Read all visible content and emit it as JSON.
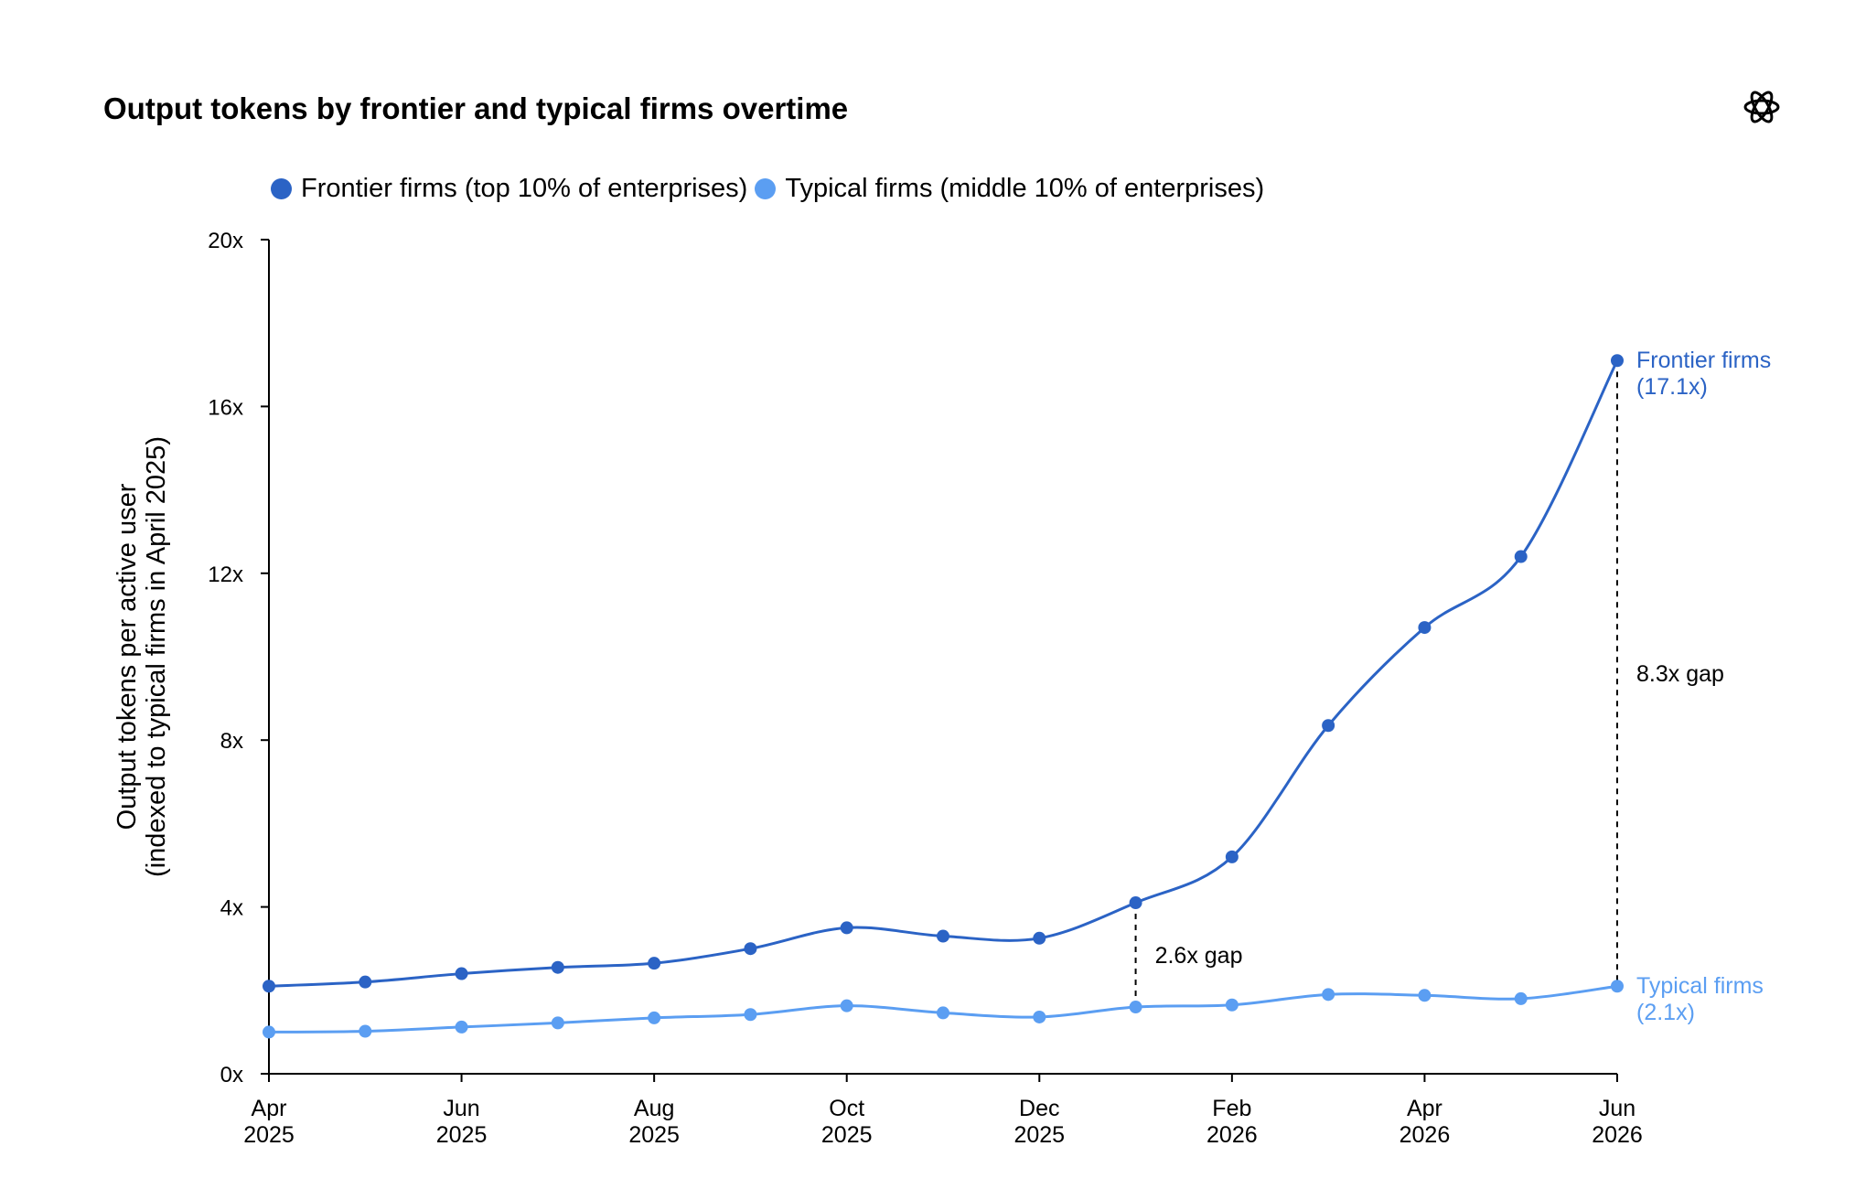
{
  "chart_data": {
    "type": "line",
    "title": "Output tokens by frontier and typical firms overtime",
    "ylabel": [
      "Output tokens per active user",
      "(indexed to typical firms in April 2025)"
    ],
    "xlabel": "",
    "ylim": [
      0,
      20
    ],
    "yticks": [
      {
        "value": 0,
        "label": "0x"
      },
      {
        "value": 4,
        "label": "4x"
      },
      {
        "value": 8,
        "label": "8x"
      },
      {
        "value": 12,
        "label": "12x"
      },
      {
        "value": 16,
        "label": "16x"
      },
      {
        "value": 20,
        "label": "20x"
      }
    ],
    "x": [
      "2025-04",
      "2025-05",
      "2025-06",
      "2025-07",
      "2025-08",
      "2025-09",
      "2025-10",
      "2025-11",
      "2025-12",
      "2026-01",
      "2026-02",
      "2026-03",
      "2026-04",
      "2026-05",
      "2026-06"
    ],
    "xticks": [
      {
        "month": "Apr",
        "year": "2025",
        "index": 0
      },
      {
        "month": "Jun",
        "year": "2025",
        "index": 2
      },
      {
        "month": "Aug",
        "year": "2025",
        "index": 4
      },
      {
        "month": "Oct",
        "year": "2025",
        "index": 6
      },
      {
        "month": "Dec",
        "year": "2025",
        "index": 8
      },
      {
        "month": "Feb",
        "year": "2026",
        "index": 10
      },
      {
        "month": "Apr",
        "year": "2026",
        "index": 12
      },
      {
        "month": "Jun",
        "year": "2026",
        "index": 14
      }
    ],
    "series": [
      {
        "name": "Frontier firms (top 10% of enterprises)",
        "color": "#2b63c5",
        "end_label": [
          "Frontier firms",
          "(17.1x)"
        ],
        "values": [
          2.1,
          2.2,
          2.4,
          2.55,
          2.65,
          3.0,
          3.5,
          3.3,
          3.25,
          4.1,
          5.2,
          8.35,
          10.7,
          12.4,
          17.1
        ]
      },
      {
        "name": "Typical firms (middle 10% of enterprises)",
        "color": "#5b9ef2",
        "end_label": [
          "Typical firms",
          "(2.1x)"
        ],
        "values": [
          1.0,
          1.02,
          1.12,
          1.22,
          1.34,
          1.42,
          1.63,
          1.46,
          1.36,
          1.6,
          1.65,
          1.9,
          1.88,
          1.8,
          2.1
        ]
      }
    ],
    "annotations": [
      {
        "label": "2.6x gap",
        "index": 9
      },
      {
        "label": "8.3x gap",
        "index": 14
      }
    ],
    "legend": "top-left"
  },
  "logo": {
    "icon": "openai-logo-icon"
  }
}
